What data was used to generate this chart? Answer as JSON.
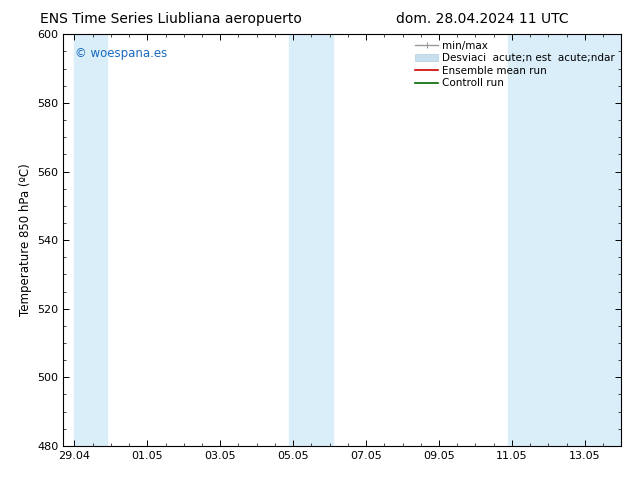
{
  "title_left": "ENS Time Series Liubliana aeropuerto",
  "title_right": "dom. 28.04.2024 11 UTC",
  "ylabel": "Temperature 850 hPa (ºC)",
  "ylim": [
    480,
    600
  ],
  "yticks": [
    480,
    500,
    520,
    540,
    560,
    580,
    600
  ],
  "xtick_labels": [
    "29.04",
    "01.05",
    "03.05",
    "05.05",
    "07.05",
    "09.05",
    "11.05",
    "13.05"
  ],
  "xtick_positions": [
    0,
    2,
    4,
    6,
    8,
    10,
    12,
    14
  ],
  "xlim": [
    -0.3,
    15.0
  ],
  "background_color": "#ffffff",
  "plot_bg_color": "#ffffff",
  "shaded_color": "#daeef9",
  "band_ranges": [
    [
      0,
      0.9
    ],
    [
      5.9,
      7.1
    ],
    [
      11.9,
      15.0
    ]
  ],
  "watermark_text": "© woespana.es",
  "watermark_color": "#1a6abf",
  "legend_label_minmax": "min/max",
  "legend_label_std": "Desviaci  acute;n est  acute;ndar",
  "legend_label_ensemble": "Ensemble mean run",
  "legend_label_control": "Controll run",
  "legend_color_minmax": "#999999",
  "legend_color_std": "#c8dff0",
  "legend_color_ensemble": "#cc0000",
  "legend_color_control": "#006600",
  "title_fontsize": 10,
  "axis_label_fontsize": 8.5,
  "tick_fontsize": 8,
  "legend_fontsize": 7.5
}
